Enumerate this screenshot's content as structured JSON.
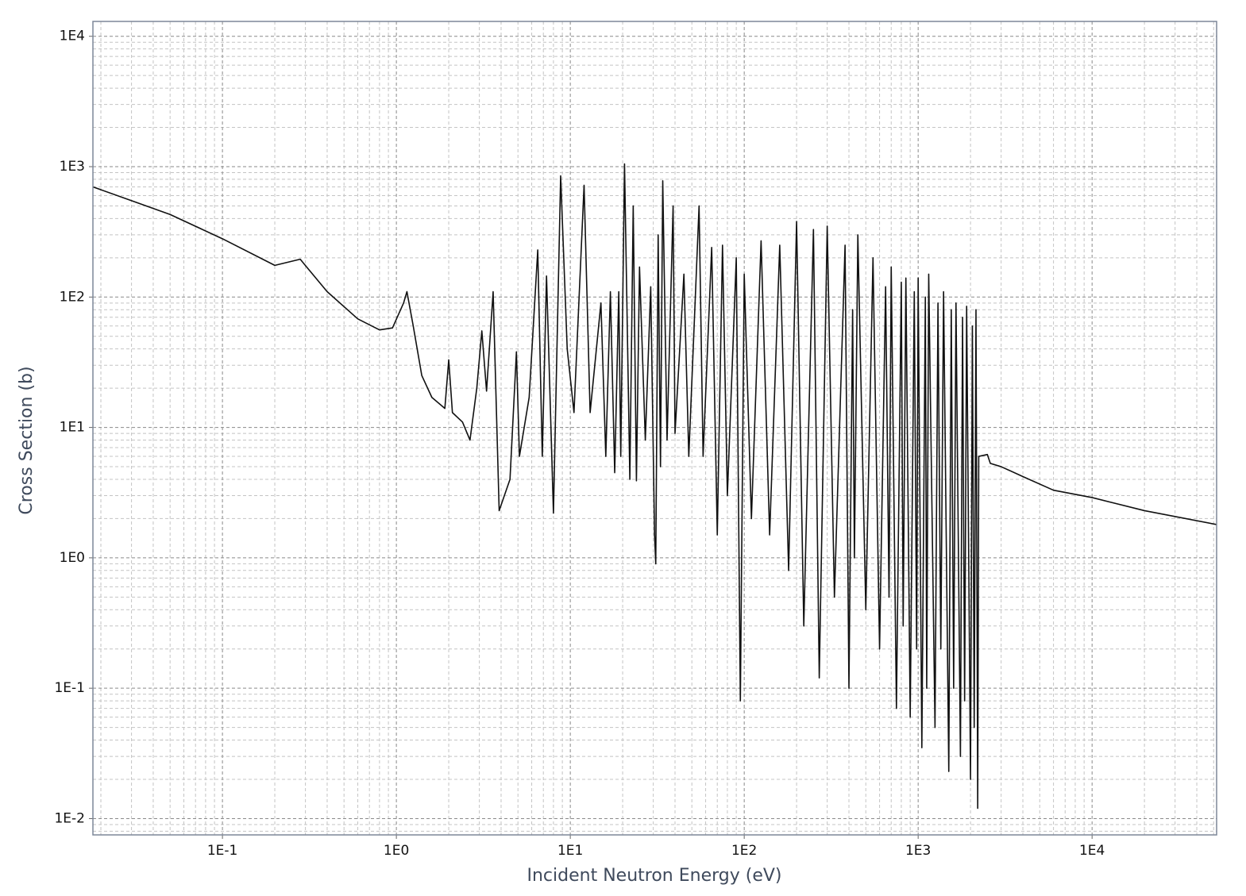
{
  "chart_data": {
    "type": "line",
    "xlabel": "Incident Neutron Energy (eV)",
    "ylabel": "Cross Section (b)",
    "xscale": "log",
    "yscale": "log",
    "grid": true,
    "minor_grid": true,
    "xlim": [
      0.018,
      52000
    ],
    "ylim": [
      0.0075,
      13000
    ],
    "xticks": [
      {
        "value": 0.1,
        "label": "1E-1"
      },
      {
        "value": 1,
        "label": "1E0"
      },
      {
        "value": 10,
        "label": "1E1"
      },
      {
        "value": 100,
        "label": "1E2"
      },
      {
        "value": 1000,
        "label": "1E3"
      },
      {
        "value": 10000,
        "label": "1E4"
      }
    ],
    "yticks": [
      {
        "value": 0.01,
        "label": "1E-2"
      },
      {
        "value": 0.1,
        "label": "1E-1"
      },
      {
        "value": 1,
        "label": "1E0"
      },
      {
        "value": 10,
        "label": "1E1"
      },
      {
        "value": 100,
        "label": "1E2"
      },
      {
        "value": 1000,
        "label": "1E3"
      },
      {
        "value": 10000,
        "label": "1E4"
      }
    ],
    "series": [
      {
        "color": "#111111",
        "x": [
          0.018,
          0.05,
          0.1,
          0.2,
          0.28,
          0.4,
          0.6,
          0.8,
          0.95,
          1.1,
          1.15,
          1.25,
          1.4,
          1.6,
          1.9,
          2.0,
          2.1,
          2.4,
          2.65,
          2.9,
          3.1,
          3.3,
          3.6,
          3.9,
          4.5,
          4.9,
          5.1,
          5.8,
          6.5,
          6.9,
          7.3,
          8,
          8.8,
          9.6,
          10.5,
          12,
          13,
          15,
          16,
          17,
          18,
          19,
          19.5,
          20.5,
          22,
          23,
          24,
          25,
          27,
          29,
          30.5,
          31,
          32,
          33,
          34,
          36,
          39,
          40,
          45,
          48,
          55,
          58,
          65,
          70,
          75,
          80,
          90,
          95,
          100,
          110,
          125,
          140,
          160,
          180,
          200,
          220,
          250,
          270,
          300,
          330,
          380,
          400,
          420,
          430,
          450,
          500,
          550,
          600,
          650,
          680,
          700,
          750,
          800,
          820,
          850,
          900,
          950,
          980,
          1000,
          1050,
          1100,
          1120,
          1150,
          1250,
          1300,
          1350,
          1400,
          1500,
          1550,
          1600,
          1650,
          1750,
          1800,
          1850,
          1900,
          2000,
          2050,
          2100,
          2150,
          2200,
          2230,
          2500,
          2600,
          3000,
          4000,
          6000,
          10000,
          20000,
          52000
        ],
        "values": [
          700,
          430,
          280,
          175,
          195,
          110,
          68,
          56,
          58,
          90,
          110,
          60,
          25,
          17,
          14,
          33,
          13,
          11,
          8,
          20,
          55,
          19,
          110,
          2.3,
          4,
          38,
          6,
          17,
          230,
          6,
          145,
          2.2,
          850,
          40,
          13,
          720,
          13,
          90,
          6,
          110,
          4.5,
          110,
          6,
          1050,
          4,
          500,
          3.9,
          170,
          8,
          120,
          1.5,
          0.9,
          300,
          5,
          780,
          8,
          500,
          9,
          150,
          6,
          500,
          6,
          240,
          1.5,
          250,
          3,
          200,
          0.08,
          150,
          2,
          270,
          1.5,
          250,
          0.8,
          380,
          0.3,
          330,
          0.12,
          350,
          0.5,
          250,
          0.1,
          80,
          1,
          300,
          0.4,
          200,
          0.2,
          120,
          0.5,
          170,
          0.07,
          130,
          0.3,
          140,
          0.06,
          110,
          0.2,
          140,
          0.035,
          100,
          0.1,
          150,
          0.05,
          90,
          0.2,
          110,
          0.023,
          80,
          0.1,
          90,
          0.03,
          70,
          0.08,
          85,
          0.02,
          60,
          0.05,
          80,
          0.012,
          6,
          6.2,
          5.3,
          5,
          4.2,
          3.3,
          2.9,
          2.3,
          1.8
        ]
      }
    ]
  }
}
